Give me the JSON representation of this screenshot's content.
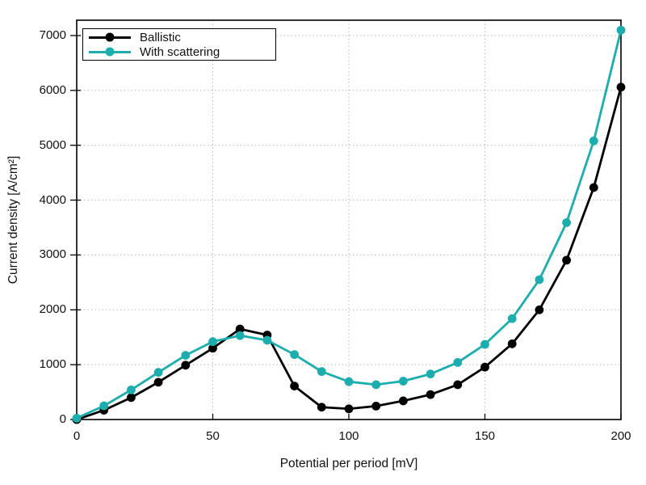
{
  "chart_data": {
    "type": "line",
    "title": "",
    "xlabel": "Potential per period [mV]",
    "ylabel": "Current density [A/cm²]",
    "x": [
      0,
      10,
      20,
      30,
      40,
      50,
      60,
      70,
      80,
      90,
      100,
      110,
      120,
      130,
      140,
      150,
      160,
      170,
      180,
      190,
      200
    ],
    "series": [
      {
        "name": "Ballistic",
        "color": "#000000",
        "marker": "circle",
        "values": [
          0,
          170,
          400,
          680,
          990,
          1300,
          1650,
          1540,
          610,
          225,
          195,
          245,
          340,
          455,
          635,
          955,
          1380,
          2000,
          2905,
          4230,
          6060
        ]
      },
      {
        "name": "With scattering",
        "color": "#1CAEAE",
        "marker": "circle",
        "values": [
          25,
          250,
          540,
          860,
          1170,
          1420,
          1530,
          1445,
          1185,
          875,
          690,
          635,
          700,
          830,
          1040,
          1370,
          1840,
          2550,
          3590,
          5080,
          7100
        ]
      }
    ],
    "xlim": [
      0,
      200
    ],
    "ylim": [
      0,
      7280
    ],
    "x_ticks": [
      0,
      50,
      100,
      150,
      200
    ],
    "y_ticks": [
      0,
      1000,
      2000,
      3000,
      4000,
      5000,
      6000,
      7000
    ],
    "grid": true,
    "grid_style": "dotted",
    "grid_color": "#b8b8b8",
    "axis_color": "#000000",
    "legend_position": "top-left",
    "legend": [
      "Ballistic",
      "With scattering"
    ]
  }
}
